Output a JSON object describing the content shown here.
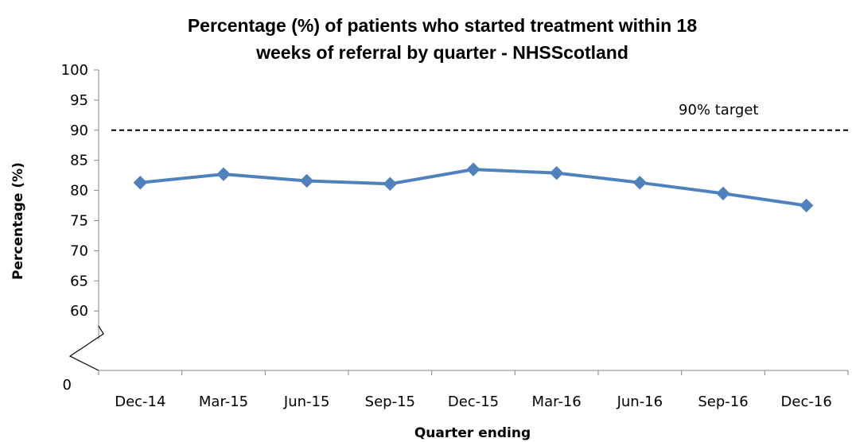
{
  "chart_data": {
    "type": "line",
    "title_lines": [
      "Percentage (%) of patients who started treatment within 18",
      "weeks of referral by quarter - NHSScotland"
    ],
    "xlabel": "Quarter ending",
    "ylabel": "Percentage (%)",
    "categories": [
      "Dec-14",
      "Mar-15",
      "Jun-15",
      "Sep-15",
      "Dec-15",
      "Mar-16",
      "Jun-16",
      "Sep-16",
      "Dec-16"
    ],
    "values": [
      81.3,
      82.7,
      81.6,
      81.1,
      83.5,
      82.9,
      81.3,
      79.5,
      77.5
    ],
    "ylim": [
      55,
      100
    ],
    "yticks": [
      "100",
      "95",
      "90",
      "85",
      "80",
      "75",
      "70",
      "65",
      "60"
    ],
    "ytick_values": [
      100,
      95,
      90,
      85,
      80,
      75,
      70,
      65,
      60
    ],
    "y_zero_label": "0",
    "axis_break": true,
    "target": {
      "value": 90,
      "label": "90% target"
    },
    "series_color": "#4f81bd",
    "marker": "diamond",
    "grid": false
  }
}
